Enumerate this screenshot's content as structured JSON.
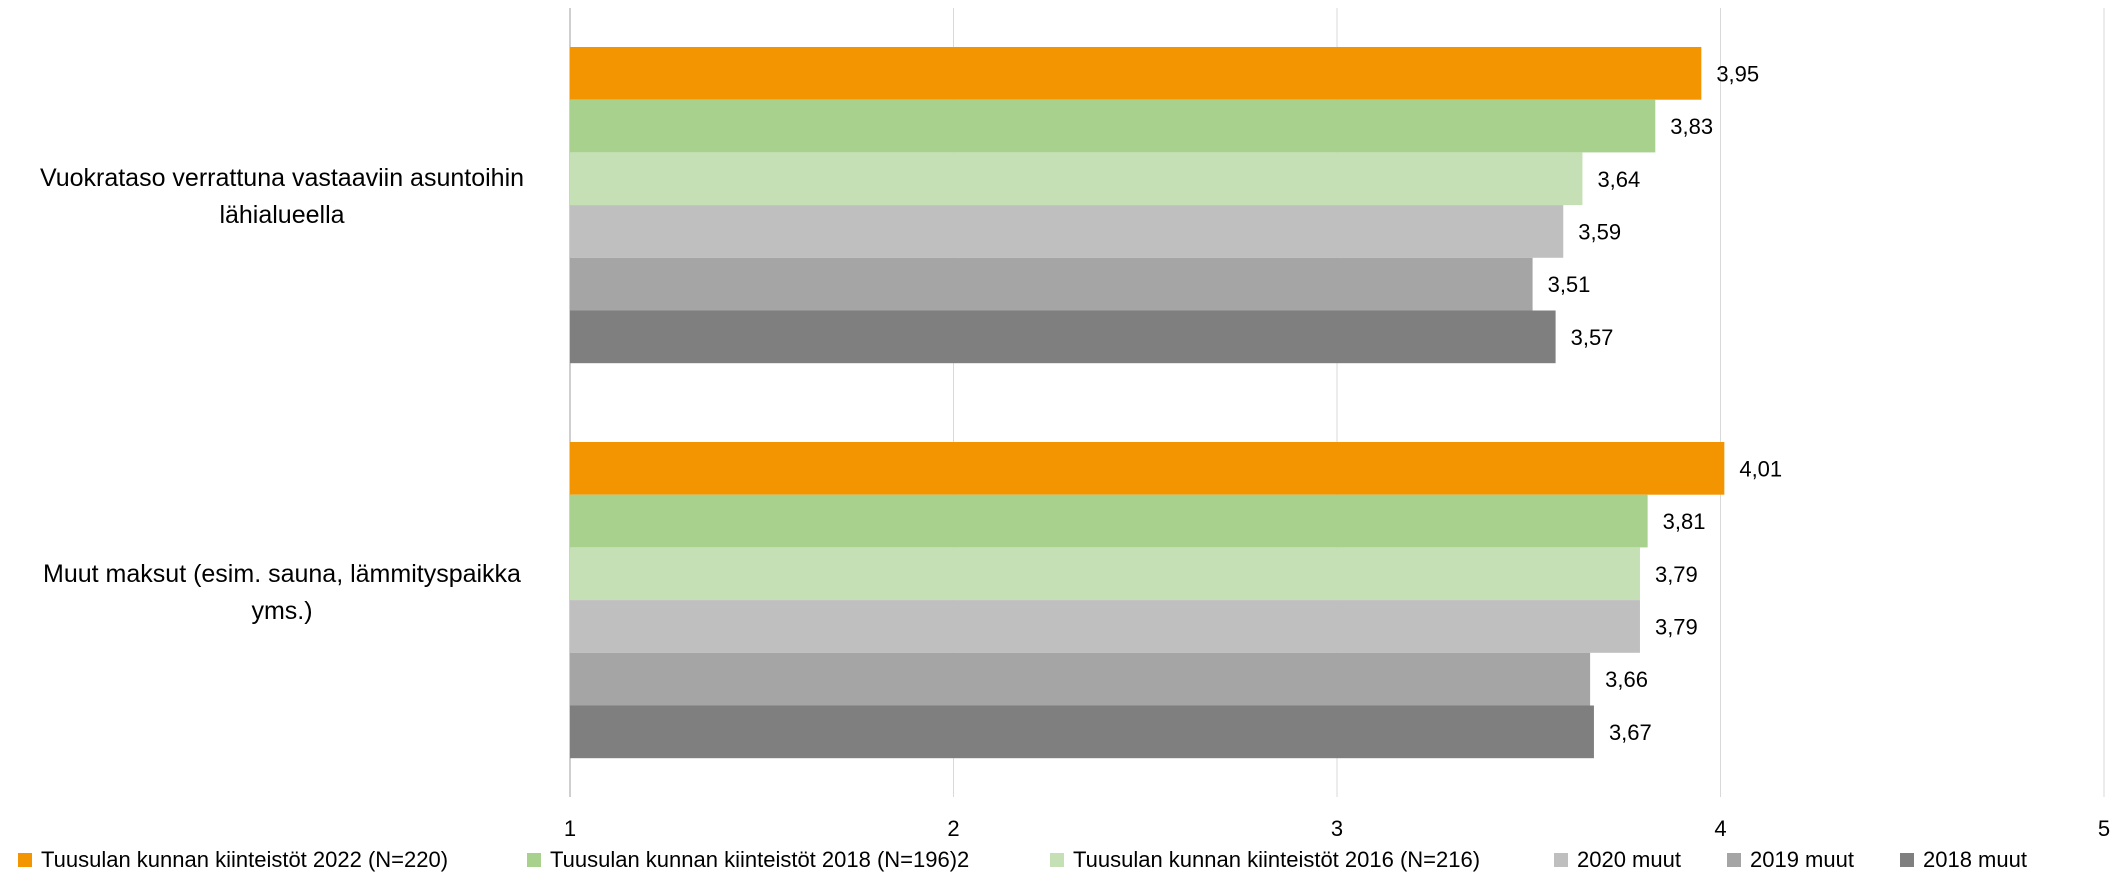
{
  "chart_data": {
    "type": "bar",
    "orientation": "horizontal",
    "categories": [
      "Vuokrataso verrattuna vastaaviin asuntoihin lähialueella",
      "Muut maksut (esim. sauna, lämmityspaikka yms.)"
    ],
    "category_lines": [
      [
        "Vuokrataso verrattuna vastaaviin asuntoihin",
        "lähialueella"
      ],
      [
        "Muut maksut (esim. sauna, lämmityspaikka",
        "yms.)"
      ]
    ],
    "series": [
      {
        "name": "Tuusulan kunnan kiinteistöt 2022 (N=220)",
        "color": "#F29500",
        "values": [
          3.95,
          4.01
        ],
        "labels": [
          "3,95",
          "4,01"
        ]
      },
      {
        "name": "Tuusulan kunnan kiinteistöt 2018 (N=196)2",
        "color": "#A9D18E",
        "values": [
          3.83,
          3.81
        ],
        "labels": [
          "3,83",
          "3,81"
        ]
      },
      {
        "name": "Tuusulan kunnan kiinteistöt 2016 (N=216)",
        "color": "#C5E0B4",
        "values": [
          3.64,
          3.79
        ],
        "labels": [
          "3,64",
          "3,79"
        ]
      },
      {
        "name": "2020 muut",
        "color": "#BFBFBF",
        "values": [
          3.59,
          3.79
        ],
        "labels": [
          "3,59",
          "3,79"
        ]
      },
      {
        "name": "2019 muut",
        "color": "#A5A5A5",
        "values": [
          3.51,
          3.66
        ],
        "labels": [
          "3,51",
          "3,66"
        ]
      },
      {
        "name": "2018 muut",
        "color": "#7F7F7F",
        "values": [
          3.57,
          3.67
        ],
        "labels": [
          "3,57",
          "3,67"
        ]
      }
    ],
    "xlim": [
      1,
      5
    ],
    "xticks": [
      "1",
      "2",
      "3",
      "4",
      "5"
    ],
    "grid": true,
    "legend_position": "bottom"
  }
}
